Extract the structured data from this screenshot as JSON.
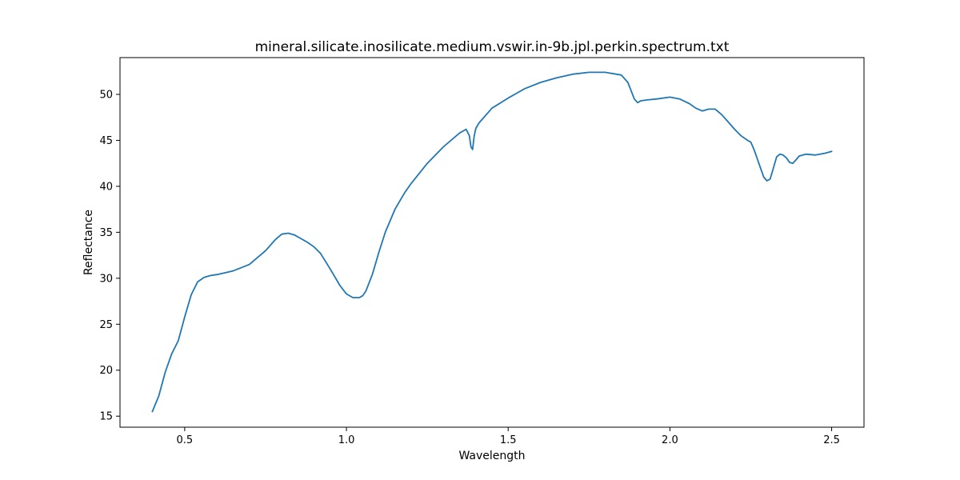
{
  "chart_data": {
    "type": "line",
    "title": "mineral.silicate.inosilicate.medium.vswir.in-9b.jpl.perkin.spectrum.txt",
    "xlabel": "Wavelength",
    "ylabel": "Reflectance",
    "xlim": [
      0.3,
      2.6
    ],
    "ylim": [
      13.8,
      54.0
    ],
    "xticks": [
      0.5,
      1.0,
      1.5,
      2.0,
      2.5
    ],
    "xtick_labels": [
      "0.5",
      "1.0",
      "1.5",
      "2.0",
      "2.5"
    ],
    "yticks": [
      15,
      20,
      25,
      30,
      35,
      40,
      45,
      50
    ],
    "ytick_labels": [
      "15",
      "20",
      "25",
      "30",
      "35",
      "40",
      "45",
      "50"
    ],
    "grid": false,
    "series": [
      {
        "color": "#1f77b4",
        "x": [
          0.4,
          0.42,
          0.44,
          0.46,
          0.48,
          0.5,
          0.52,
          0.54,
          0.56,
          0.58,
          0.6,
          0.65,
          0.7,
          0.75,
          0.78,
          0.8,
          0.82,
          0.84,
          0.86,
          0.88,
          0.9,
          0.92,
          0.95,
          0.98,
          1.0,
          1.02,
          1.04,
          1.05,
          1.06,
          1.08,
          1.1,
          1.12,
          1.15,
          1.18,
          1.2,
          1.25,
          1.3,
          1.35,
          1.37,
          1.38,
          1.385,
          1.39,
          1.395,
          1.4,
          1.41,
          1.45,
          1.5,
          1.55,
          1.6,
          1.65,
          1.7,
          1.75,
          1.8,
          1.85,
          1.87,
          1.88,
          1.89,
          1.9,
          1.91,
          1.93,
          1.96,
          2.0,
          2.03,
          2.06,
          2.08,
          2.1,
          2.12,
          2.14,
          2.16,
          2.18,
          2.2,
          2.22,
          2.24,
          2.25,
          2.26,
          2.27,
          2.28,
          2.29,
          2.3,
          2.31,
          2.32,
          2.33,
          2.34,
          2.35,
          2.36,
          2.37,
          2.38,
          2.39,
          2.4,
          2.42,
          2.45,
          2.48,
          2.5
        ],
        "y": [
          15.5,
          17.2,
          19.8,
          21.8,
          23.2,
          25.8,
          28.2,
          29.6,
          30.1,
          30.3,
          30.4,
          30.8,
          31.5,
          33.0,
          34.2,
          34.8,
          34.9,
          34.7,
          34.3,
          33.9,
          33.4,
          32.7,
          31.0,
          29.2,
          28.3,
          27.9,
          27.9,
          28.1,
          28.6,
          30.4,
          32.8,
          35.0,
          37.5,
          39.3,
          40.3,
          42.5,
          44.3,
          45.8,
          46.2,
          45.5,
          44.3,
          44.0,
          45.5,
          46.3,
          46.9,
          48.5,
          49.6,
          50.6,
          51.3,
          51.8,
          52.2,
          52.4,
          52.4,
          52.1,
          51.3,
          50.4,
          49.5,
          49.1,
          49.3,
          49.4,
          49.5,
          49.7,
          49.5,
          49.0,
          48.5,
          48.2,
          48.4,
          48.4,
          47.8,
          47.0,
          46.2,
          45.5,
          45.0,
          44.8,
          44.0,
          43.0,
          42.0,
          41.0,
          40.6,
          40.8,
          42.0,
          43.2,
          43.5,
          43.4,
          43.1,
          42.6,
          42.5,
          42.9,
          43.3,
          43.5,
          43.4,
          43.6,
          43.8
        ]
      }
    ]
  }
}
